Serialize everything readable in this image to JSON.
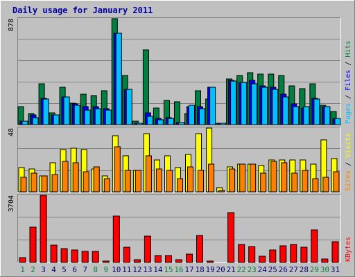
{
  "chart_data": {
    "type": "bar",
    "title": "Daily usage for January 2011",
    "categories": [
      "1",
      "2",
      "3",
      "4",
      "5",
      "6",
      "7",
      "8",
      "9",
      "10",
      "11",
      "12",
      "13",
      "14",
      "15",
      "16",
      "17",
      "18",
      "19",
      "20",
      "21",
      "22",
      "23",
      "24",
      "25",
      "26",
      "27",
      "28",
      "29",
      "30",
      "31"
    ],
    "weekend_days": [
      "1",
      "2",
      "8",
      "9",
      "15",
      "16",
      "22",
      "23",
      "29",
      "30"
    ],
    "panels": [
      {
        "id": "hits",
        "ymax_label": "878",
        "ylim": [
          0,
          878
        ],
        "legend": [
          {
            "text": "Pages",
            "color": "#00c0ff"
          },
          {
            "text": " / ",
            "color": "#000000"
          },
          {
            "text": "Files",
            "color": "#0000ff"
          },
          {
            "text": " / ",
            "color": "#000000"
          },
          {
            "text": "Hits",
            "color": "#008040"
          }
        ],
        "series": [
          {
            "name": "Hits",
            "color": "#008040",
            "values": [
              150,
              90,
              340,
              100,
              310,
              180,
              250,
              240,
              280,
              878,
              410,
              30,
              620,
              140,
              200,
              190,
              90,
              280,
              210,
              10,
              380,
              410,
              430,
              420,
              420,
              410,
              320,
              300,
              340,
              160,
              110
            ]
          },
          {
            "name": "Files",
            "color": "#0000ff",
            "values": [
              30,
              80,
              220,
              80,
              230,
              170,
              150,
              150,
              130,
              760,
              290,
              10,
              100,
              50,
              60,
              20,
              150,
              150,
              310,
              10,
              370,
              350,
              370,
              320,
              310,
              250,
              170,
              140,
              220,
              150,
              50
            ]
          },
          {
            "name": "Pages",
            "color": "#00c0ff",
            "values": [
              30,
              60,
              210,
              80,
              230,
              160,
              120,
              130,
              120,
              760,
              290,
              10,
              70,
              40,
              50,
              20,
              160,
              130,
              310,
              10,
              360,
              350,
              340,
              310,
              290,
              230,
              150,
              150,
              210,
              150,
              50
            ]
          }
        ]
      },
      {
        "id": "visits",
        "ymax_label": "48",
        "ylim": [
          0,
          48
        ],
        "legend": [
          {
            "text": "Sites",
            "color": "#ff8000"
          },
          {
            "text": " / ",
            "color": "#000000"
          },
          {
            "text": "Visits",
            "color": "#ffff00"
          }
        ],
        "series": [
          {
            "name": "Visits",
            "color": "#ffff00",
            "values": [
              18,
              17,
              12,
              22,
              32,
              33,
              32,
              17,
              12,
              42,
              27,
              16,
              44,
              24,
              27,
              18,
              28,
              44,
              48,
              3,
              19,
              21,
              21,
              20,
              24,
              24,
              24,
              24,
              21,
              39,
              25
            ]
          },
          {
            "name": "Sites",
            "color": "#ff8000",
            "values": [
              11,
              14,
              12,
              13,
              23,
              22,
              15,
              19,
              10,
              34,
              16,
              16,
              27,
              17,
              16,
              10,
              19,
              16,
              21,
              1,
              17,
              21,
              21,
              14,
              23,
              22,
              14,
              16,
              10,
              11,
              15
            ]
          }
        ]
      },
      {
        "id": "kbytes",
        "ymax_label": "3704",
        "ylim": [
          0,
          3704
        ],
        "legend": [
          {
            "text": "KBytes",
            "color": "#ff0000"
          }
        ],
        "series": [
          {
            "name": "KBytes",
            "color": "#ff0000",
            "values": [
              250,
              1950,
              3704,
              970,
              760,
              680,
              610,
              610,
              60,
              2550,
              830,
              150,
              1450,
              380,
              370,
              150,
              460,
              1500,
              70,
              0,
              2750,
              1000,
              880,
              360,
              680,
              910,
              980,
              830,
              1780,
              200,
              1150
            ]
          }
        ]
      }
    ]
  }
}
